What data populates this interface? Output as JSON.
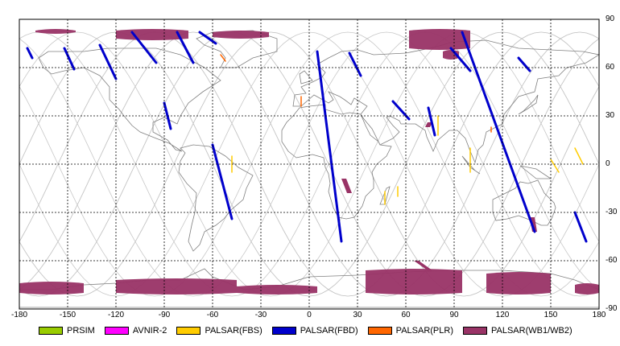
{
  "map": {
    "x_ticks": [
      "-180",
      "-150",
      "-120",
      "-90",
      "-60",
      "-30",
      "0",
      "30",
      "60",
      "90",
      "120",
      "150",
      "180"
    ],
    "y_ticks": [
      "90",
      "60",
      "30",
      "0",
      "-30",
      "-60",
      "-90"
    ],
    "x_range": [
      -180,
      180
    ],
    "y_range": [
      -90,
      90
    ],
    "grid": true,
    "colors": {
      "background": "#ffffff",
      "grid": "#000000",
      "coastline": "#808080",
      "orbit_track": "#c8c8c8"
    }
  },
  "legend": {
    "placement": "bottom",
    "items": [
      {
        "label": "PRSIM",
        "color": "#99cc00"
      },
      {
        "label": "AVNIR-2",
        "color": "#ff00ff"
      },
      {
        "label": "PALSAR(FBS)",
        "color": "#ffcc00"
      },
      {
        "label": "PALSAR(FBD)",
        "color": "#0000cc"
      },
      {
        "label": "PALSAR(PLR)",
        "color": "#ff6600"
      },
      {
        "label": "PALSAR(WB1/WB2)",
        "color": "#993366"
      }
    ]
  },
  "chart_data": {
    "type": "map",
    "xlim": [
      -180,
      180
    ],
    "ylim": [
      -90,
      90
    ],
    "observations": {
      "PALSAR(WB1/WB2)": [
        {
          "lon": [
            -170,
            -145
          ],
          "lat": [
            82,
            83
          ]
        },
        {
          "lon": [
            -120,
            -75
          ],
          "lat": [
            78,
            83
          ]
        },
        {
          "lon": [
            -60,
            -25
          ],
          "lat": [
            79,
            82
          ]
        },
        {
          "lon": [
            62,
            100
          ],
          "lat": [
            72,
            83
          ]
        },
        {
          "lon": [
            83,
            93
          ],
          "lat": [
            66,
            70
          ]
        },
        {
          "lon": [
            20,
            25
          ],
          "lat": [
            -9,
            -18
          ]
        },
        {
          "lon": [
            72,
            75
          ],
          "lat": [
            23,
            26
          ]
        },
        {
          "lon": [
            137,
            140
          ],
          "lat": [
            -33,
            -42
          ]
        },
        {
          "lon": [
            -180,
            -140
          ],
          "lat": [
            -74,
            -80
          ]
        },
        {
          "lon": [
            -120,
            -45
          ],
          "lat": [
            -72,
            -80
          ]
        },
        {
          "lon": [
            -45,
            5
          ],
          "lat": [
            -76,
            -80
          ]
        },
        {
          "lon": [
            35,
            95
          ],
          "lat": [
            -66,
            -80
          ]
        },
        {
          "lon": [
            65,
            75
          ],
          "lat": [
            -60,
            -66
          ]
        },
        {
          "lon": [
            110,
            150
          ],
          "lat": [
            -68,
            -80
          ]
        },
        {
          "lon": [
            165,
            180
          ],
          "lat": [
            -75,
            -80
          ]
        }
      ],
      "PALSAR(FBD)": [
        {
          "lon": [
            -175,
            -172
          ],
          "lat": [
            72,
            66
          ]
        },
        {
          "lon": [
            -152,
            -146
          ],
          "lat": [
            72,
            59
          ]
        },
        {
          "lon": [
            -130,
            -120
          ],
          "lat": [
            74,
            53
          ]
        },
        {
          "lon": [
            -110,
            -95
          ],
          "lat": [
            82,
            63
          ]
        },
        {
          "lon": [
            -82,
            -72
          ],
          "lat": [
            82,
            63
          ]
        },
        {
          "lon": [
            -68,
            -58
          ],
          "lat": [
            82,
            75
          ]
        },
        {
          "lon": [
            -60,
            -48
          ],
          "lat": [
            12,
            -34
          ]
        },
        {
          "lon": [
            -90,
            -86
          ],
          "lat": [
            38,
            22
          ]
        },
        {
          "lon": [
            5,
            20
          ],
          "lat": [
            70,
            -48
          ]
        },
        {
          "lon": [
            25,
            32
          ],
          "lat": [
            69,
            55
          ]
        },
        {
          "lon": [
            52,
            62
          ],
          "lat": [
            39,
            28
          ]
        },
        {
          "lon": [
            74,
            78
          ],
          "lat": [
            35,
            18
          ]
        },
        {
          "lon": [
            95,
            140
          ],
          "lat": [
            82,
            -42
          ]
        },
        {
          "lon": [
            88,
            100
          ],
          "lat": [
            72,
            58
          ]
        },
        {
          "lon": [
            130,
            137
          ],
          "lat": [
            66,
            58
          ]
        },
        {
          "lon": [
            165,
            172
          ],
          "lat": [
            -30,
            -48
          ]
        }
      ],
      "PALSAR(FBS)": [
        {
          "lon": [
            -48,
            -48
          ],
          "lat": [
            5,
            -5
          ]
        },
        {
          "lon": [
            47,
            47
          ],
          "lat": [
            -17,
            -25
          ]
        },
        {
          "lon": [
            55,
            55
          ],
          "lat": [
            -14,
            -20
          ]
        },
        {
          "lon": [
            80,
            80
          ],
          "lat": [
            30,
            18
          ]
        },
        {
          "lon": [
            100,
            100
          ],
          "lat": [
            10,
            -5
          ]
        },
        {
          "lon": [
            150,
            155
          ],
          "lat": [
            3,
            -5
          ]
        },
        {
          "lon": [
            165,
            170
          ],
          "lat": [
            10,
            0
          ]
        }
      ],
      "PALSAR(PLR)": [
        {
          "lon": [
            -55,
            -52
          ],
          "lat": [
            68,
            64
          ]
        },
        {
          "lon": [
            -5,
            -5
          ],
          "lat": [
            42,
            36
          ]
        },
        {
          "lon": [
            113,
            113
          ],
          "lat": [
            23,
            20
          ]
        }
      ]
    }
  }
}
